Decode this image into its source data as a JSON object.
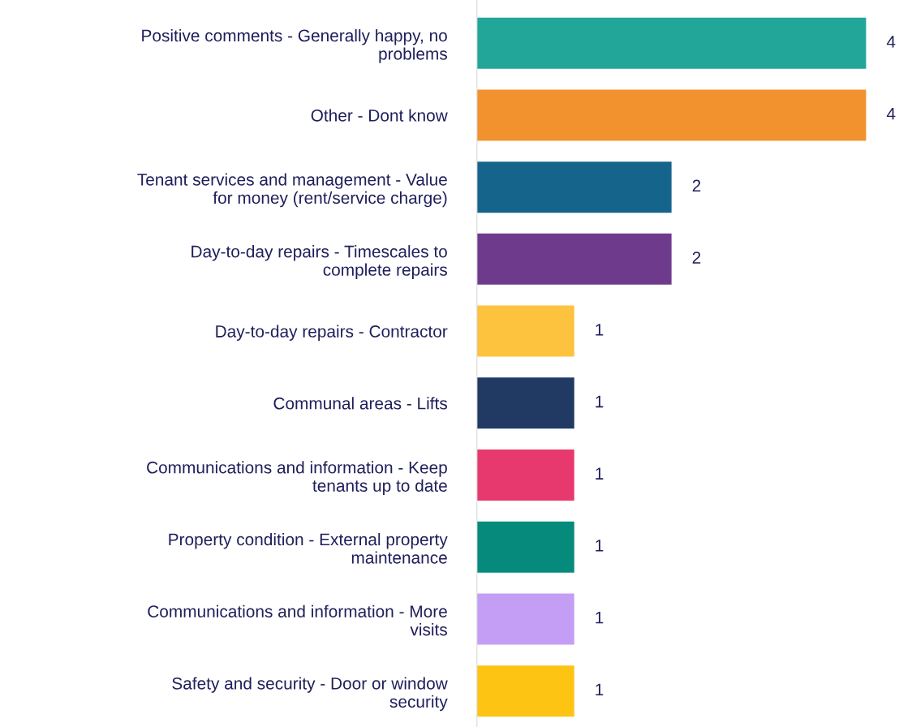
{
  "chart_data": {
    "type": "bar",
    "orientation": "horizontal",
    "categories": [
      "Positive comments - Generally happy, no problems",
      "Other - Dont know",
      "Tenant services and management - Value for money (rent/service charge)",
      "Day-to-day repairs - Timescales to complete repairs",
      "Day-to-day repairs - Contractor",
      "Communal areas - Lifts",
      "Communications and information - Keep tenants up to date",
      "Property condition - External property maintenance",
      "Communications and information - More visits",
      "Safety and security - Door or window security"
    ],
    "values": [
      4,
      4,
      2,
      2,
      1,
      1,
      1,
      1,
      1,
      1
    ],
    "colors": [
      "#22a699",
      "#f2922e",
      "#15648b",
      "#6e3b8c",
      "#fdc23e",
      "#213a63",
      "#e8396f",
      "#068a7c",
      "#c49ef5",
      "#fdc414"
    ],
    "data_labels": true,
    "grid": false,
    "legend": false,
    "tick_labels": "y"
  }
}
